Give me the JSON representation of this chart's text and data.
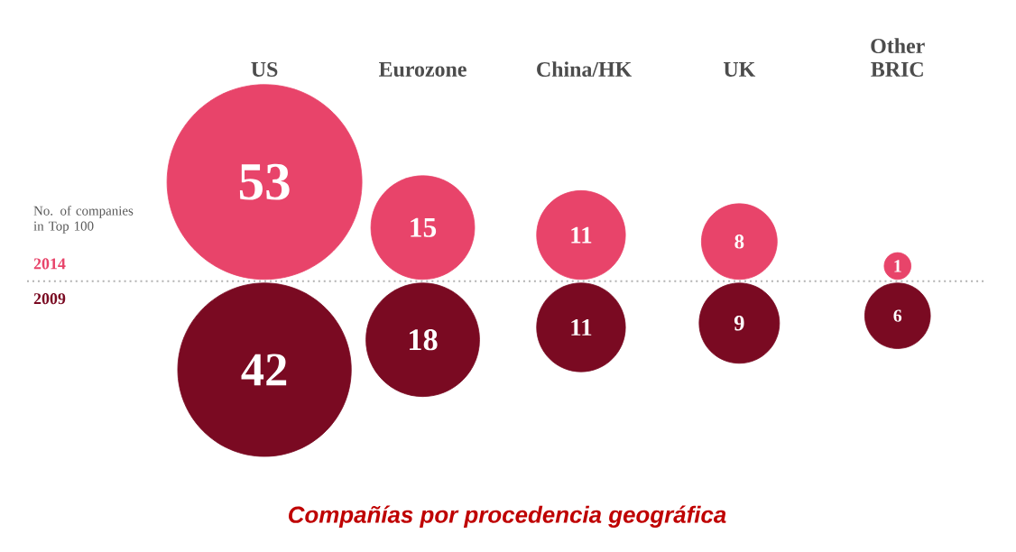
{
  "chart_data": {
    "type": "other",
    "title": "Compañías por procedencia geográfica",
    "categories": [
      "US",
      "Eurozone",
      "China/HK",
      "UK",
      "Other BRIC"
    ],
    "series": [
      {
        "name": "2014",
        "color": "#e8446a",
        "values": [
          53,
          15,
          11,
          8,
          1
        ]
      },
      {
        "name": "2009",
        "color": "#7a0a22",
        "values": [
          42,
          18,
          11,
          9,
          6
        ]
      }
    ],
    "annotations": [
      "No. of companies in Top 100"
    ],
    "data_labels": true
  }
}
